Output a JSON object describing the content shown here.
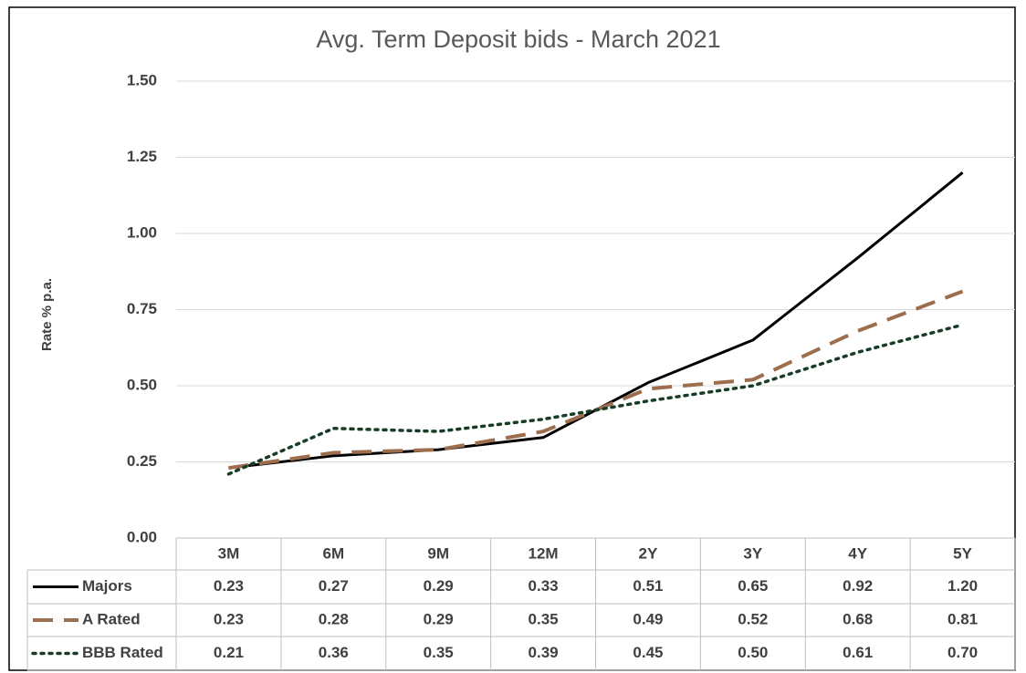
{
  "chart_data": {
    "type": "line",
    "title": "Avg. Term Deposit bids - March 2021",
    "y_label": "Rate % p.a.",
    "categories": [
      "3M",
      "6M",
      "9M",
      "12M",
      "2Y",
      "3Y",
      "4Y",
      "5Y"
    ],
    "series": [
      {
        "name": "Majors",
        "color": "#000000",
        "dash": "solid",
        "values": [
          0.23,
          0.27,
          0.29,
          0.33,
          0.51,
          0.65,
          0.92,
          1.2
        ],
        "value_labels": [
          "0.23",
          "0.27",
          "0.29",
          "0.33",
          "0.51",
          "0.65",
          "0.92",
          "1.20"
        ]
      },
      {
        "name": "A Rated",
        "color": "#9c6e4e",
        "dash": "dashed",
        "values": [
          0.23,
          0.28,
          0.29,
          0.35,
          0.49,
          0.52,
          0.68,
          0.81
        ],
        "value_labels": [
          "0.23",
          "0.28",
          "0.29",
          "0.35",
          "0.49",
          "0.52",
          "0.68",
          "0.81"
        ]
      },
      {
        "name": "BBB Rated",
        "color": "#173d27",
        "dash": "dotted",
        "values": [
          0.21,
          0.36,
          0.35,
          0.39,
          0.45,
          0.5,
          0.61,
          0.7
        ],
        "value_labels": [
          "0.21",
          "0.36",
          "0.35",
          "0.39",
          "0.45",
          "0.50",
          "0.61",
          "0.70"
        ]
      }
    ],
    "ylim": [
      0,
      1.5
    ],
    "yticks": [
      {
        "value": 0,
        "label": "0.00"
      },
      0.25,
      {
        "value": 0.5,
        "label": "0.50"
      },
      0.75,
      {
        "value": 1,
        "label": "1.00"
      },
      1.25,
      {
        "value": 1.5,
        "label": "1.50"
      }
    ],
    "grid": true
  }
}
